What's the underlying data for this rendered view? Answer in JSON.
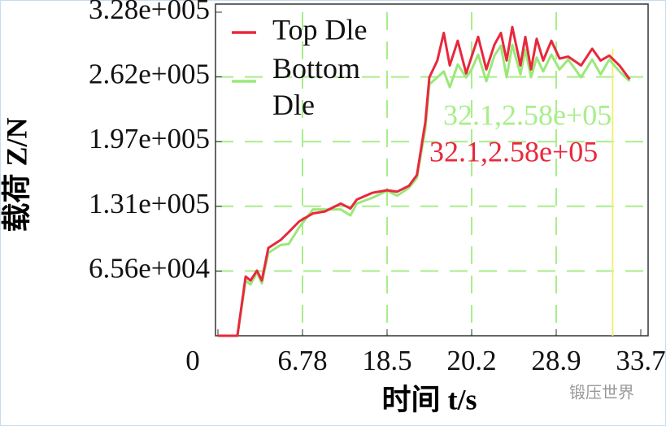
{
  "chart_data": {
    "type": "line",
    "x_label": "时间 t/s",
    "y_label": "载荷 Z/N",
    "series": [
      {
        "name": "Top Dle",
        "color": "#e8283c",
        "x": [
          0,
          1.56,
          2.22,
          2.61,
          3.13,
          3.52,
          4.04,
          5.02,
          5.67,
          6.52,
          8.22,
          9.88,
          12.09,
          13.42,
          14.3,
          16.51,
          18.5,
          18.7,
          18.94,
          19.1,
          19.27,
          19.35,
          19.51,
          19.64,
          19.76,
          19.92,
          20.09,
          20.2,
          20.87,
          21.71,
          22.54,
          23.21,
          23.8,
          24.38,
          25.22,
          25.72,
          26.31,
          26.89,
          27.56,
          28.4,
          29.09,
          29.58,
          30.31,
          30.94,
          31.42,
          31.91,
          32.49,
          33.07
        ],
        "values": [
          0,
          0,
          60000,
          56000,
          66000,
          56000,
          89000,
          97000,
          105000,
          116000,
          124000,
          126000,
          134000,
          129000,
          138000,
          145000,
          147500,
          146000,
          152000,
          163000,
          217000,
          262000,
          279000,
          307000,
          274000,
          299000,
          266000,
          283000,
          303000,
          270000,
          295000,
          307000,
          279000,
          313000,
          274000,
          303000,
          270000,
          301000,
          279000,
          299000,
          281000,
          283000,
          274000,
          291000,
          279000,
          284000,
          274000,
          260000
        ]
      },
      {
        "name": "Bottom Dle",
        "color": "#9be87a",
        "x": [
          0,
          1.56,
          2.22,
          2.61,
          3.13,
          3.52,
          4.04,
          5.02,
          5.67,
          6.52,
          8.22,
          9.88,
          12.09,
          13.42,
          14.3,
          16.51,
          18.5,
          18.7,
          18.94,
          19.1,
          19.27,
          19.35,
          19.51,
          19.64,
          19.76,
          19.92,
          20.09,
          20.2,
          20.87,
          21.71,
          22.54,
          23.21,
          23.8,
          24.38,
          25.22,
          25.72,
          26.31,
          26.89,
          27.56,
          28.4,
          29.09,
          29.58,
          30.31,
          30.94,
          31.42,
          31.91,
          32.49,
          33.07
        ],
        "values": [
          0,
          0,
          56000,
          52000,
          64000,
          53000,
          84000,
          92000,
          93000,
          110000,
          128000,
          128000,
          128000,
          122000,
          134000,
          140000,
          147000,
          142000,
          150000,
          160000,
          210000,
          255000,
          262000,
          268000,
          252000,
          275000,
          262000,
          270000,
          285000,
          258000,
          284000,
          294000,
          262000,
          295000,
          265000,
          290000,
          262000,
          282000,
          268000,
          285000,
          270000,
          280000,
          262000,
          280000,
          265000,
          280000,
          268000,
          258000
        ]
      }
    ],
    "xlim": [
      0,
      34.3
    ],
    "xticks": [
      0,
      6.78,
      18.5,
      20.2,
      28.9,
      33.7
    ],
    "ylim": [
      0,
      328000
    ],
    "yticks": [
      {
        "value": 65600,
        "label": "6.56e+004"
      },
      {
        "value": 131200,
        "label": "1.31e+005"
      },
      {
        "value": 196800,
        "label": "1.97e+005"
      },
      {
        "value": 262400,
        "label": "2.62e+005"
      },
      {
        "value": 328000,
        "label": "3.28e+005"
      }
    ],
    "grid": true,
    "grid_color": "#a8ee8a",
    "legend": "upper left",
    "cursor": {
      "x": 32.1,
      "y": 258000,
      "color": "#f0f07a"
    },
    "annotations": [
      {
        "text": "32.1,2.58e+05",
        "color": "#a8ee8a"
      },
      {
        "text": "32.1,2.58e+05",
        "color": "#e8283c"
      }
    ],
    "watermark": "锻压世界"
  }
}
